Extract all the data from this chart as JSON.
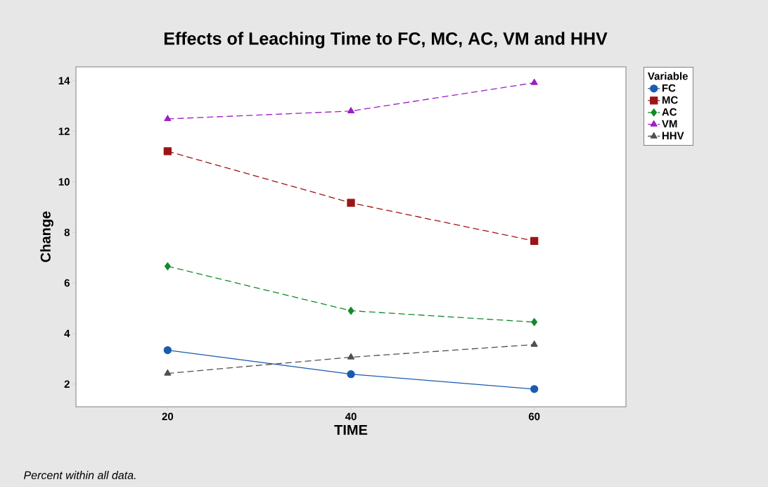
{
  "chart_data": {
    "type": "line",
    "title": "Effects of Leaching Time to  FC, MC, AC, VM and  HHV",
    "xlabel": "TIME",
    "ylabel": "Change",
    "legend_title": "Variable",
    "annotations": [
      "Percent within all data."
    ],
    "x": [
      20,
      40,
      60
    ],
    "xlim": [
      10,
      70
    ],
    "xticks": [
      20,
      40,
      60
    ],
    "ylim": [
      1.1,
      14.55
    ],
    "yticks": [
      2,
      4,
      6,
      8,
      10,
      12,
      14
    ],
    "grid": false,
    "legend": "right",
    "series": [
      {
        "name": "FC",
        "color": "#1a5cb0",
        "marker": "circle",
        "line_style": "solid",
        "values": [
          3.34,
          2.39,
          1.8
        ]
      },
      {
        "name": "MC",
        "color": "#9b1515",
        "marker": "square",
        "line_style": "dashed",
        "values": [
          11.21,
          9.17,
          7.66
        ]
      },
      {
        "name": "AC",
        "color": "#128a2a",
        "marker": "diamond",
        "line_style": "dashed",
        "values": [
          6.66,
          4.9,
          4.45
        ]
      },
      {
        "name": "VM",
        "color": "#9a1fc4",
        "marker": "triangle",
        "line_style": "dashed",
        "values": [
          12.49,
          12.8,
          13.92
        ]
      },
      {
        "name": "HHV",
        "color": "#505050",
        "marker": "triangle",
        "line_style": "dashed",
        "values": [
          2.42,
          3.06,
          3.56
        ]
      }
    ]
  }
}
